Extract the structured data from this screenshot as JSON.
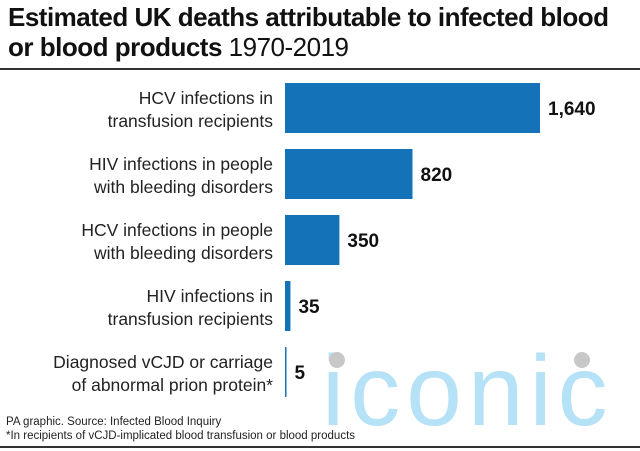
{
  "chart_data": {
    "type": "bar",
    "orientation": "horizontal",
    "title": "Estimated UK deaths attributable to infected blood or blood products",
    "subtitle": "1970-2019",
    "categories": [
      [
        "HCV infections in",
        "transfusion recipients"
      ],
      [
        "HIV infections in people",
        "with bleeding disorders"
      ],
      [
        "HCV infections in people",
        "with bleeding disorders"
      ],
      [
        "HIV infections in",
        "transfusion recipients"
      ],
      [
        "Diagnosed vCJD or carriage",
        "of abnormal prion protein*"
      ]
    ],
    "values": [
      1640,
      820,
      350,
      35,
      5
    ],
    "value_labels": [
      "1,640",
      "820",
      "350",
      "35",
      "5"
    ],
    "xlim": [
      0,
      1640
    ],
    "grid": false,
    "bar_color": "#1473b8"
  },
  "footer": {
    "source": "PA graphic. Source: Infected Blood Inquiry",
    "note": "*In recipients of vCJD-implicated blood transfusion or blood products"
  },
  "watermark": "iconic"
}
